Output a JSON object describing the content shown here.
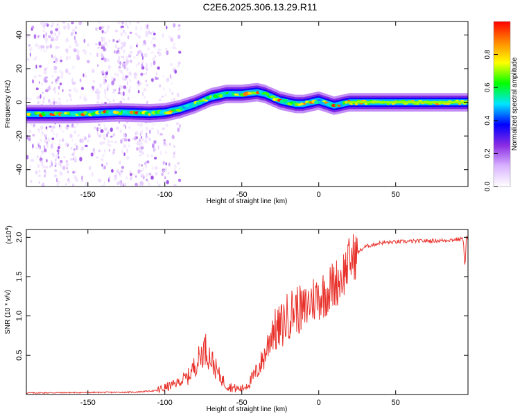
{
  "figure": {
    "title": "C2E6.2025.306.13.29.R11"
  },
  "colors": {
    "snr_line": "#e8302a",
    "axis": "#000000",
    "colormap": [
      "#ffffff",
      "#d9b3ff",
      "#8a2be2",
      "#0000ff",
      "#00e5ff",
      "#00ff00",
      "#ffff00",
      "#ff8800",
      "#ff0000"
    ]
  },
  "chart_data": [
    {
      "id": "spectrogram",
      "type": "heatmap",
      "title": "",
      "xlabel": "Height of straight line (km)",
      "ylabel": "Frequency (Hz)",
      "xlim": [
        -190,
        97
      ],
      "ylim": [
        -50,
        48
      ],
      "xticks": [
        -150,
        -100,
        -50,
        0,
        50
      ],
      "xtick_labels": [
        "-150",
        "-100",
        "-50",
        "0",
        "50"
      ],
      "yticks": [
        -40,
        -20,
        0,
        20,
        40
      ],
      "ytick_labels": [
        "-40",
        "-20",
        "0",
        "20",
        "40"
      ],
      "ridge": {
        "x": [
          -190,
          -160,
          -130,
          -110,
          -100,
          -90,
          -80,
          -70,
          -60,
          -50,
          -40,
          -35,
          -30,
          -25,
          -20,
          -15,
          -10,
          -5,
          0,
          5,
          10,
          15,
          20,
          40,
          60,
          80,
          97
        ],
        "y": [
          -7,
          -7,
          -6,
          -6.5,
          -6,
          -4,
          -1,
          3,
          5,
          5,
          6,
          5,
          3,
          1,
          0,
          -1,
          -1,
          0,
          1,
          -0.5,
          -2,
          -1,
          0,
          0,
          0,
          0,
          0
        ]
      },
      "colorbar": {
        "label": "Normalized spectral amplitude",
        "range": [
          0,
          1
        ],
        "ticks": [
          0.0,
          0.2,
          0.4,
          0.6,
          0.8
        ],
        "tick_labels": [
          "0.0",
          "0.2",
          "0.4",
          "0.6",
          "0.8"
        ]
      }
    },
    {
      "id": "snr",
      "type": "line",
      "title": "",
      "xlabel": "Height of straight line (km)",
      "ylabel": "SNR (10 * v/v)",
      "y_multiplier": "(x10",
      "y_multiplier_exp": "4",
      "y_multiplier_close": ")",
      "xlim": [
        -190,
        97
      ],
      "ylim": [
        0,
        2.1
      ],
      "xticks": [
        -150,
        -100,
        -50,
        0,
        50
      ],
      "xtick_labels": [
        "-150",
        "-100",
        "-50",
        "0",
        "50"
      ],
      "yticks": [
        0.5,
        1.0,
        1.5,
        2.0
      ],
      "ytick_labels": [
        "0.5",
        "1.0",
        "1.5",
        "2.0"
      ],
      "series": [
        {
          "name": "SNR",
          "x": [
            -190,
            -120,
            -105,
            -95,
            -85,
            -78,
            -74,
            -70,
            -65,
            -60,
            -55,
            -50,
            -45,
            -40,
            -35,
            -32,
            -30,
            -28,
            -25,
            -20,
            -15,
            -10,
            -5,
            0,
            5,
            10,
            15,
            20,
            25,
            30,
            40,
            60,
            80,
            94,
            95,
            96,
            97
          ],
          "y": [
            0.02,
            0.03,
            0.05,
            0.12,
            0.22,
            0.45,
            0.6,
            0.45,
            0.25,
            0.12,
            0.08,
            0.07,
            0.15,
            0.3,
            0.5,
            0.7,
            0.85,
            0.8,
            0.85,
            1.0,
            1.1,
            1.05,
            1.2,
            1.25,
            1.3,
            1.4,
            1.5,
            1.7,
            1.8,
            1.88,
            1.93,
            1.95,
            1.96,
            1.98,
            1.6,
            2.02,
            1.95
          ]
        }
      ]
    }
  ]
}
